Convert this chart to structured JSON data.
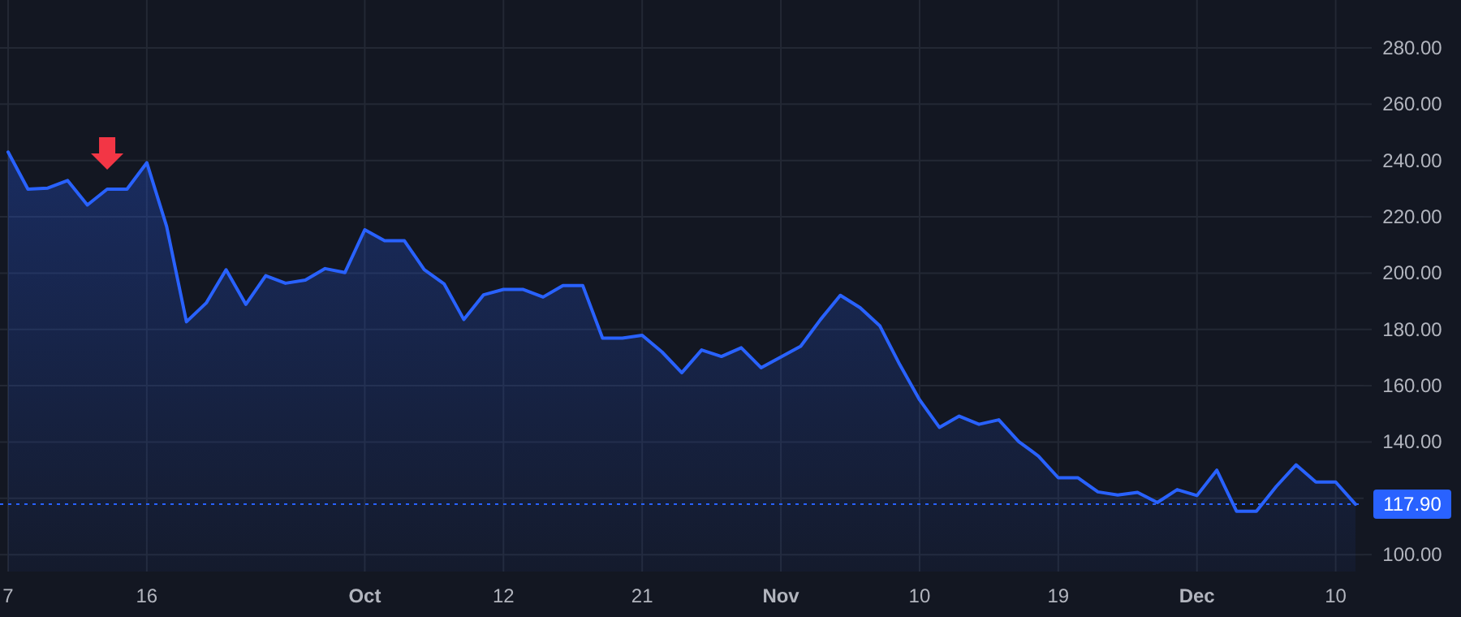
{
  "chart_data": {
    "type": "area",
    "categories": [
      "7",
      null,
      null,
      null,
      null,
      null,
      null,
      "16",
      null,
      null,
      null,
      null,
      null,
      null,
      null,
      null,
      null,
      null,
      "Oct",
      null,
      null,
      null,
      null,
      null,
      null,
      "12",
      null,
      null,
      null,
      null,
      null,
      null,
      "21",
      null,
      null,
      null,
      null,
      null,
      null,
      "Nov",
      null,
      null,
      null,
      null,
      null,
      null,
      "10",
      null,
      null,
      null,
      null,
      null,
      null,
      "19",
      null,
      null,
      null,
      null,
      null,
      null,
      "Dec",
      null,
      null,
      null,
      null,
      null,
      null,
      "10",
      null
    ],
    "series": [
      {
        "color": "#2962ff",
        "values": [
          243,
          229.8,
          230.2,
          232.9,
          224.2,
          229.8,
          229.8,
          239.2,
          216.6,
          182.7,
          189.4,
          201.2,
          188.9,
          199.1,
          196.4,
          197.5,
          201.6,
          200.2,
          215.4,
          211.5,
          211.5,
          201.2,
          196.2,
          183.5,
          192.3,
          194.2,
          194.2,
          191.5,
          195.6,
          195.6,
          176.9,
          176.9,
          177.9,
          172,
          164.6,
          172.7,
          170.4,
          173.5,
          166.4,
          170.2,
          174,
          183.5,
          192.1,
          187.7,
          181.2,
          167.5,
          155,
          145.2,
          149.2,
          146.3,
          147.9,
          140.2,
          135,
          127.3,
          127.3,
          122.3,
          121.2,
          122.1,
          118.5,
          123.1,
          121,
          130,
          115.4,
          115.4,
          124.2,
          131.9,
          125.8,
          125.8,
          117.9
        ]
      }
    ],
    "ylim": [
      94,
      297
    ],
    "yticks": [
      {
        "value": 100,
        "label": "100.00"
      },
      {
        "value": 120,
        "label": null
      },
      {
        "value": 140,
        "label": "140.00"
      },
      {
        "value": 160,
        "label": "160.00"
      },
      {
        "value": 180,
        "label": "180.00"
      },
      {
        "value": 200,
        "label": "200.00"
      },
      {
        "value": 220,
        "label": "220.00"
      },
      {
        "value": 240,
        "label": "240.00"
      },
      {
        "value": 260,
        "label": "260.00"
      },
      {
        "value": 280,
        "label": "280.00"
      }
    ],
    "ref_lines": [
      {
        "axis": "y",
        "value": 117.9,
        "label": "117.90",
        "color": "#2962ff",
        "line_style": "dotted"
      }
    ],
    "grid": true
  }
}
